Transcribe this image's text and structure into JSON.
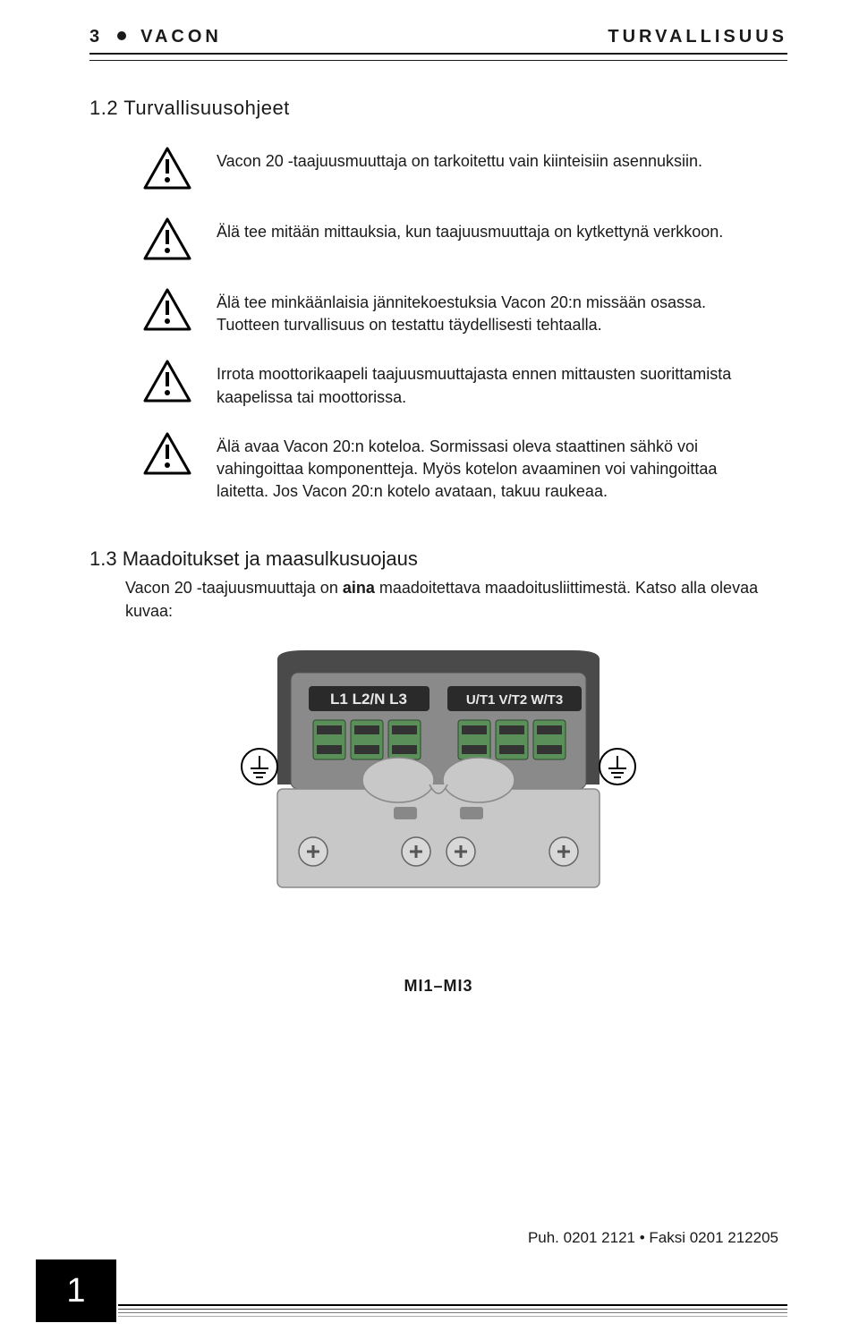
{
  "header": {
    "page_number": "3",
    "brand": "VACON",
    "section_title": "TURVALLISUUS"
  },
  "section": {
    "number_title": "1.2 Turvallisuusohjeet"
  },
  "warnings": [
    "Vacon 20 -taajuusmuuttaja on tarkoitettu vain kiinteisiin asennuksiin.",
    "Älä tee mitään mittauksia, kun taajuusmuuttaja on kytkettynä verkkoon.",
    "Älä tee minkäänlaisia jännitekoestuksia Vacon 20:n missään osassa. Tuotteen turvallisuus on testattu täydellisesti tehtaalla.",
    "Irrota moottorikaapeli taajuusmuuttajasta ennen mittausten suorittamista kaapelissa tai moottorissa.",
    "Älä avaa Vacon 20:n koteloa. Sormissasi oleva staattinen sähkö voi vahingoittaa komponentteja. Myös kotelon avaaminen voi vahingoittaa laitetta. Jos Vacon 20:n kotelo avataan, takuu raukeaa."
  ],
  "subsection": {
    "number_title": "1.3 Maadoitukset ja maasulkusuojaus",
    "text_before": "Vacon 20 -taajuusmuuttaja on ",
    "text_bold": "aina",
    "text_after": " maadoitettava maadoitusliittimestä. Katso alla olevaa kuvaa:"
  },
  "figure": {
    "label_left": "L1  L2/N  L3",
    "label_right": "U/T1 V/T2 W/T3",
    "caption": "MI1–MI3",
    "colors": {
      "panel_dark": "#4a4a4a",
      "panel_mid": "#8a8a8a",
      "panel_light": "#c8c8c8",
      "terminal_green": "#5a8f5a",
      "label_bg": "#2a2a2a",
      "label_text": "#e8e8e8",
      "screw_fill": "#d8d8d8"
    }
  },
  "footer": {
    "contact": "Puh. 0201 2121 • Faksi 0201 212205",
    "chapter_number": "1"
  }
}
